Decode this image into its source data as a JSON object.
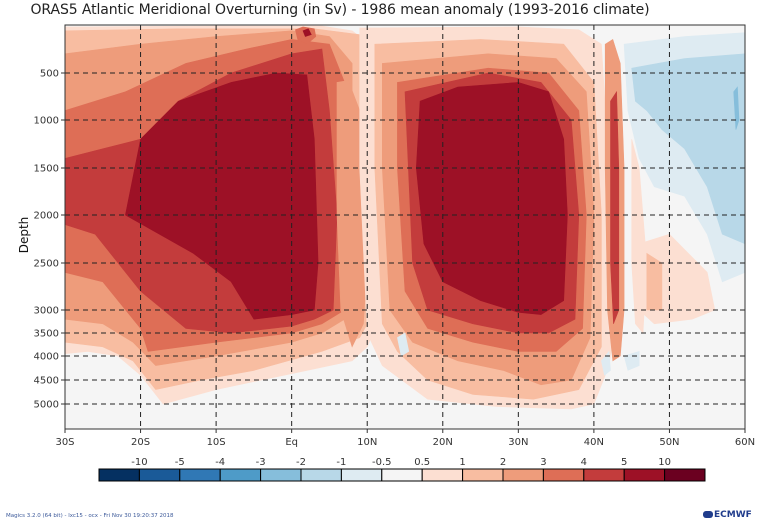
{
  "chart_data": {
    "type": "heatmap",
    "subtype": "filled-contour",
    "title": "ORAS5 Atlantic Meridional Overturning (in Sv) - 1986 mean anomaly (1993-2016 climate)",
    "xlabel": "",
    "ylabel": "Depth",
    "x_ticks": [
      {
        "value": -30,
        "label": "30S"
      },
      {
        "value": -20,
        "label": "20S"
      },
      {
        "value": -10,
        "label": "10S"
      },
      {
        "value": 0,
        "label": "Eq"
      },
      {
        "value": 10,
        "label": "10N"
      },
      {
        "value": 20,
        "label": "20N"
      },
      {
        "value": 30,
        "label": "30N"
      },
      {
        "value": 40,
        "label": "40N"
      },
      {
        "value": 50,
        "label": "50N"
      },
      {
        "value": 60,
        "label": "60N"
      }
    ],
    "y_ticks": [
      {
        "value": 500,
        "label": "500"
      },
      {
        "value": 1000,
        "label": "1000"
      },
      {
        "value": 1500,
        "label": "1500"
      },
      {
        "value": 2000,
        "label": "2000"
      },
      {
        "value": 2500,
        "label": "2500"
      },
      {
        "value": 3000,
        "label": "3000"
      },
      {
        "value": 3500,
        "label": "3500"
      },
      {
        "value": 4000,
        "label": "4000"
      },
      {
        "value": 4500,
        "label": "4500"
      },
      {
        "value": 5000,
        "label": "5000"
      }
    ],
    "xlim": [
      -30,
      60
    ],
    "ylim_top": 0,
    "ylim_bottom": 5500,
    "y_inverted": true,
    "grid": true,
    "grid_style": "dashed",
    "colorbar": {
      "labels": [
        "-10",
        "-5",
        "-4",
        "-3",
        "-2",
        "-1",
        "-0.5",
        "0.5",
        "1",
        "2",
        "3",
        "4",
        "5",
        "10"
      ],
      "colors": [
        "#053061",
        "#1a5a98",
        "#3078b5",
        "#4e9bc8",
        "#86bedb",
        "#b8d8e8",
        "#deebf2",
        "#f5f5f5",
        "#fcdfd2",
        "#f8bda1",
        "#ee9c7b",
        "#de6e56",
        "#c33c3c",
        "#9d1126",
        "#6b0020"
      ],
      "placement": "bottom"
    },
    "features": [
      {
        "name": "southern-cell",
        "lat_range": [
          -23,
          3
        ],
        "depth_range": [
          500,
          3200
        ],
        "level": "5 to 10"
      },
      {
        "name": "northern-cell",
        "lat_range": [
          16,
          38
        ],
        "depth_range": [
          500,
          3100
        ],
        "level": "5 to 10"
      },
      {
        "name": "equatorial-surface-max",
        "lat_range": [
          1,
          3
        ],
        "depth_range": [
          50,
          200
        ],
        "level": "5 to 10"
      },
      {
        "name": "subpolar-negative",
        "lat_range": [
          43,
          60
        ],
        "depth_range": [
          100,
          2200
        ],
        "level": "-2 to -0.5"
      }
    ]
  },
  "footer": {
    "software": "Magics 3.2.0 (64 bit) - lxc15 - ocx - Fri Nov 30 19:20:37 2018",
    "logo": "ECMWF"
  }
}
